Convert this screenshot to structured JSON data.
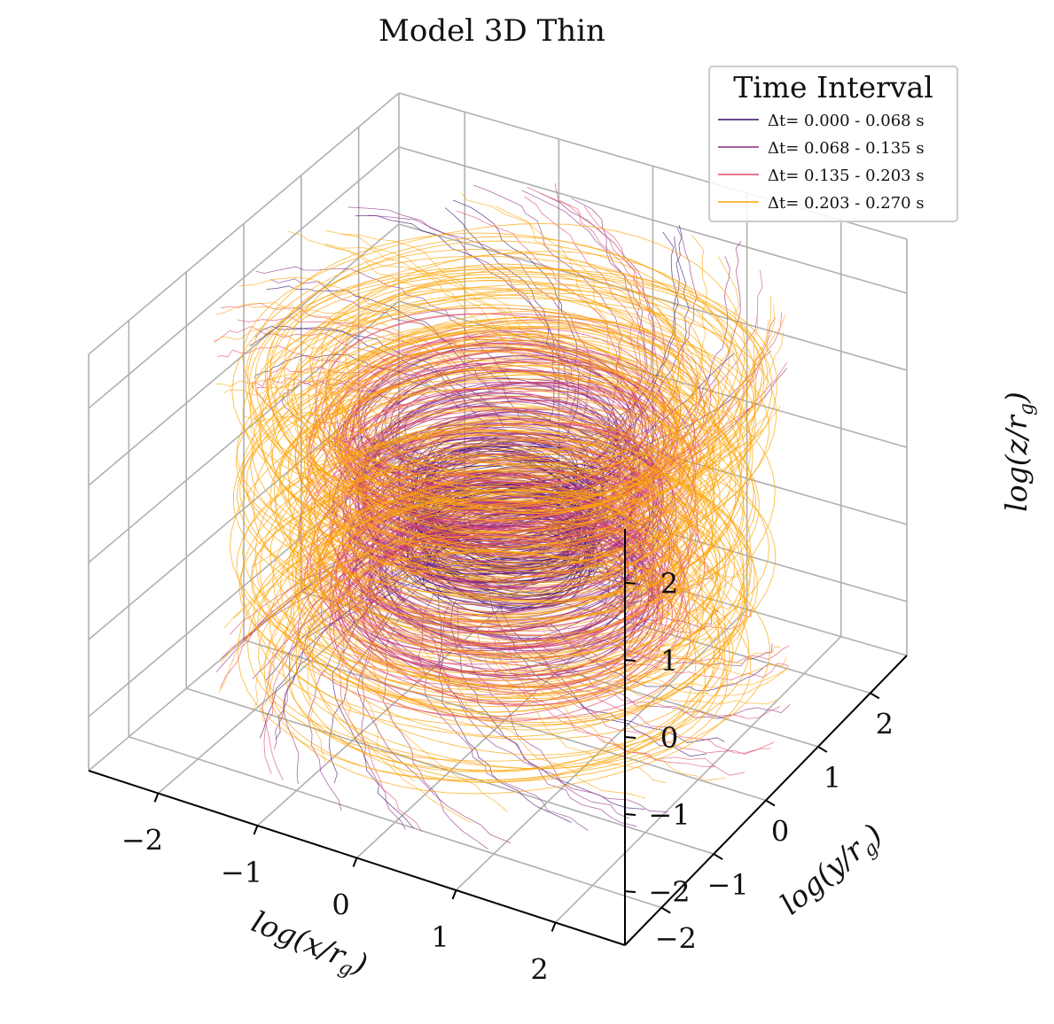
{
  "chart_data": {
    "type": "3d-line",
    "title": "Model 3D Thin",
    "xlabel": "log(x/r_g)",
    "ylabel": "log(y/r_g)",
    "zlabel": "log(z/r_g)",
    "xlim": [
      -2.7,
      2.7
    ],
    "ylim": [
      -2.7,
      2.7
    ],
    "zlim": [
      -2.7,
      2.7
    ],
    "xticks": [
      "−2",
      "−1",
      "0",
      "1",
      "2"
    ],
    "yticks": [
      "−2",
      "−1",
      "0",
      "1",
      "2"
    ],
    "zticks": [
      "−2",
      "−1",
      "0",
      "1",
      "2"
    ],
    "grid": true,
    "colormap": "inferno",
    "legend": {
      "title": "Time Interval",
      "placement": "top-right",
      "entries": [
        {
          "label": "Δt= 0.000 - 0.068 s",
          "color": "#3b0f70"
        },
        {
          "label": "Δt= 0.068 - 0.135 s",
          "color": "#8c2981"
        },
        {
          "label": "Δt= 0.135 - 0.203 s",
          "color": "#de4968"
        },
        {
          "label": "Δt= 0.203 - 0.270 s",
          "color": "#fca50a"
        }
      ]
    },
    "series": [
      {
        "name": "Δt= 0.000 - 0.068 s",
        "color": "#3b0f70",
        "ring_radii": [
          0.6,
          0.9
        ],
        "ring_z_range": [
          -0.8,
          0.6
        ],
        "strand_count": 60
      },
      {
        "name": "Δt= 0.068 - 0.135 s",
        "color": "#8c2981",
        "ring_radii": [
          0.9,
          1.5
        ],
        "ring_z_range": [
          -1.2,
          1.2
        ],
        "strand_count": 90
      },
      {
        "name": "Δt= 0.135 - 0.203 s",
        "color": "#de4968",
        "ring_radii": [
          1.2,
          1.8
        ],
        "ring_z_range": [
          -1.5,
          1.5
        ],
        "strand_count": 80
      },
      {
        "name": "Δt= 0.203 - 0.270 s",
        "color": "#fca50a",
        "ring_radii": [
          1.5,
          2.4
        ],
        "ring_z_range": [
          -2.0,
          2.0
        ],
        "strand_count": 120
      }
    ]
  }
}
